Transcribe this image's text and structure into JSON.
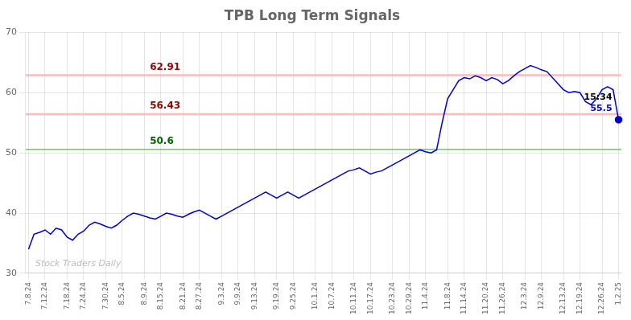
{
  "chart_data": {
    "type": "line",
    "title": "TPB Long Term Signals",
    "categories": [
      "7.8.24",
      null,
      null,
      "7.12.24",
      null,
      null,
      null,
      "7.18.24",
      null,
      null,
      "7.24.24",
      null,
      null,
      null,
      "7.30.24",
      null,
      null,
      "8.5.24",
      null,
      null,
      null,
      "8.9.24",
      null,
      null,
      "8.15.24",
      null,
      null,
      null,
      "8.21.24",
      null,
      null,
      "8.27.24",
      null,
      null,
      null,
      "9.3.24",
      null,
      null,
      "9.9.24",
      null,
      null,
      "9.13.24",
      null,
      null,
      null,
      "9.19.24",
      null,
      null,
      "9.25.24",
      null,
      null,
      null,
      "10.1.24",
      null,
      null,
      "10.7.24",
      null,
      null,
      null,
      "10.11.24",
      null,
      null,
      "10.17.24",
      null,
      null,
      null,
      "10.23.24",
      null,
      null,
      "10.29.24",
      null,
      null,
      "11.4.24",
      null,
      null,
      null,
      "11.8.24",
      null,
      null,
      "11.14.24",
      null,
      null,
      null,
      "11.20.24",
      null,
      null,
      "11.26.24",
      null,
      null,
      null,
      "12.3.24",
      null,
      null,
      "12.9.24",
      null,
      null,
      null,
      "12.13.24",
      null,
      null,
      "12.19.24",
      null,
      null,
      null,
      "12.26.24",
      null,
      null,
      "1.2.25"
    ],
    "values": [
      34.0,
      36.5,
      36.8,
      37.2,
      36.5,
      37.5,
      37.2,
      36.0,
      35.5,
      36.5,
      37.0,
      38.0,
      38.5,
      38.2,
      37.8,
      37.5,
      38.0,
      38.8,
      39.5,
      40.0,
      39.8,
      39.5,
      39.2,
      39.0,
      39.5,
      40.0,
      39.8,
      39.5,
      39.3,
      39.8,
      40.2,
      40.5,
      40.0,
      39.5,
      39.0,
      39.5,
      40.0,
      40.5,
      41.0,
      41.5,
      42.0,
      42.5,
      43.0,
      43.5,
      43.0,
      42.5,
      43.0,
      43.5,
      43.0,
      42.5,
      43.0,
      43.5,
      44.0,
      44.5,
      45.0,
      45.5,
      46.0,
      46.5,
      47.0,
      47.2,
      47.5,
      47.0,
      46.5,
      46.8,
      47.0,
      47.5,
      48.0,
      48.5,
      49.0,
      49.5,
      50.0,
      50.5,
      50.2,
      50.0,
      50.5,
      55.0,
      59.0,
      60.5,
      62.0,
      62.5,
      62.3,
      62.8,
      62.5,
      62.0,
      62.5,
      62.2,
      61.5,
      62.0,
      62.8,
      63.5,
      64.0,
      64.5,
      64.2,
      63.8,
      63.5,
      62.5,
      61.5,
      60.5,
      60.0,
      60.2,
      60.0,
      58.5,
      58.0,
      59.0,
      60.5,
      61.0,
      60.5,
      55.5
    ],
    "color": "#0000cc",
    "marker": "last",
    "reference_lines": [
      {
        "value": 50.6,
        "label": "50.6",
        "color": "#66cc66",
        "label_color": "#006600"
      },
      {
        "value": 56.43,
        "label": "56.43",
        "color": "#ffbbbb",
        "label_color": "#990000"
      },
      {
        "value": 62.91,
        "label": "62.91",
        "color": "#ffbbbb",
        "label_color": "#990000"
      }
    ],
    "annotations": [
      {
        "text": "15:34",
        "color": "#000000"
      },
      {
        "text": "55.5",
        "color": "#0000cc"
      }
    ],
    "watermark": {
      "text": "Stock Traders Daily",
      "color": "#bbbbbb"
    },
    "ylim": [
      30,
      70
    ],
    "yticks": [
      30,
      40,
      50,
      60,
      70
    ],
    "grid": true
  }
}
